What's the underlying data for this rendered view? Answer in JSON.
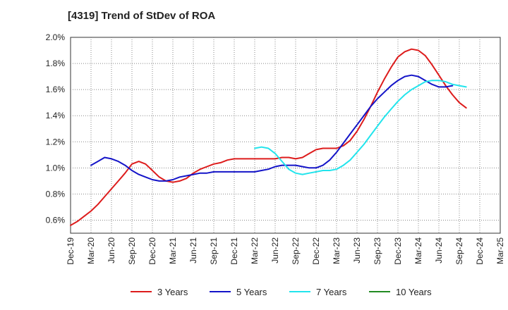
{
  "chart_data": {
    "type": "line",
    "title": "[4319]  Trend of StDev of ROA",
    "xlabel": "",
    "ylabel": "",
    "x_ticks": [
      "Dec-19",
      "Mar-20",
      "Jun-20",
      "Sep-20",
      "Dec-20",
      "Mar-21",
      "Jun-21",
      "Sep-21",
      "Dec-21",
      "Mar-22",
      "Jun-22",
      "Sep-22",
      "Dec-22",
      "Mar-23",
      "Jun-23",
      "Sep-23",
      "Dec-23",
      "Mar-24",
      "Jun-24",
      "Sep-24",
      "Dec-24",
      "Mar-25"
    ],
    "y_ticks": [
      "0.6%",
      "0.8%",
      "1.0%",
      "1.2%",
      "1.4%",
      "1.6%",
      "1.8%",
      "2.0%"
    ],
    "ylim": [
      0.5,
      2.0
    ],
    "grid": true,
    "legend_position": "bottom",
    "series": [
      {
        "name": "3 Years",
        "color": "#dd1c1c",
        "start_index": 0,
        "values": [
          0.56,
          0.59,
          0.63,
          0.67,
          0.72,
          0.78,
          0.84,
          0.9,
          0.96,
          1.03,
          1.05,
          1.03,
          0.98,
          0.93,
          0.9,
          0.89,
          0.9,
          0.92,
          0.96,
          0.99,
          1.01,
          1.03,
          1.04,
          1.06,
          1.07,
          1.07,
          1.07,
          1.07,
          1.07,
          1.07,
          1.07,
          1.08,
          1.08,
          1.07,
          1.08,
          1.11,
          1.14,
          1.15,
          1.15,
          1.15,
          1.17,
          1.21,
          1.28,
          1.37,
          1.47,
          1.58,
          1.68,
          1.77,
          1.85,
          1.89,
          1.91,
          1.9,
          1.86,
          1.79,
          1.71,
          1.63,
          1.56,
          1.5,
          1.46
        ]
      },
      {
        "name": "5 Years",
        "color": "#1414c8",
        "start_index": 3,
        "values": [
          1.02,
          1.05,
          1.08,
          1.07,
          1.05,
          1.02,
          0.98,
          0.95,
          0.93,
          0.91,
          0.9,
          0.9,
          0.91,
          0.93,
          0.94,
          0.95,
          0.96,
          0.96,
          0.97,
          0.97,
          0.97,
          0.97,
          0.97,
          0.97,
          0.97,
          0.98,
          0.99,
          1.01,
          1.02,
          1.02,
          1.02,
          1.01,
          1.0,
          1.0,
          1.02,
          1.06,
          1.12,
          1.19,
          1.26,
          1.33,
          1.4,
          1.47,
          1.53,
          1.58,
          1.63,
          1.67,
          1.7,
          1.71,
          1.7,
          1.67,
          1.64,
          1.62,
          1.62,
          1.63
        ]
      },
      {
        "name": "7 Years",
        "color": "#22e4ec",
        "start_index": 27,
        "values": [
          1.15,
          1.16,
          1.15,
          1.11,
          1.05,
          0.99,
          0.96,
          0.95,
          0.96,
          0.97,
          0.98,
          0.98,
          0.99,
          1.02,
          1.06,
          1.12,
          1.18,
          1.25,
          1.32,
          1.39,
          1.45,
          1.51,
          1.56,
          1.6,
          1.63,
          1.66,
          1.67,
          1.67,
          1.66,
          1.64,
          1.63,
          1.62
        ]
      },
      {
        "name": "10 Years",
        "color": "#228b22",
        "start_index": 0,
        "values": []
      }
    ]
  }
}
